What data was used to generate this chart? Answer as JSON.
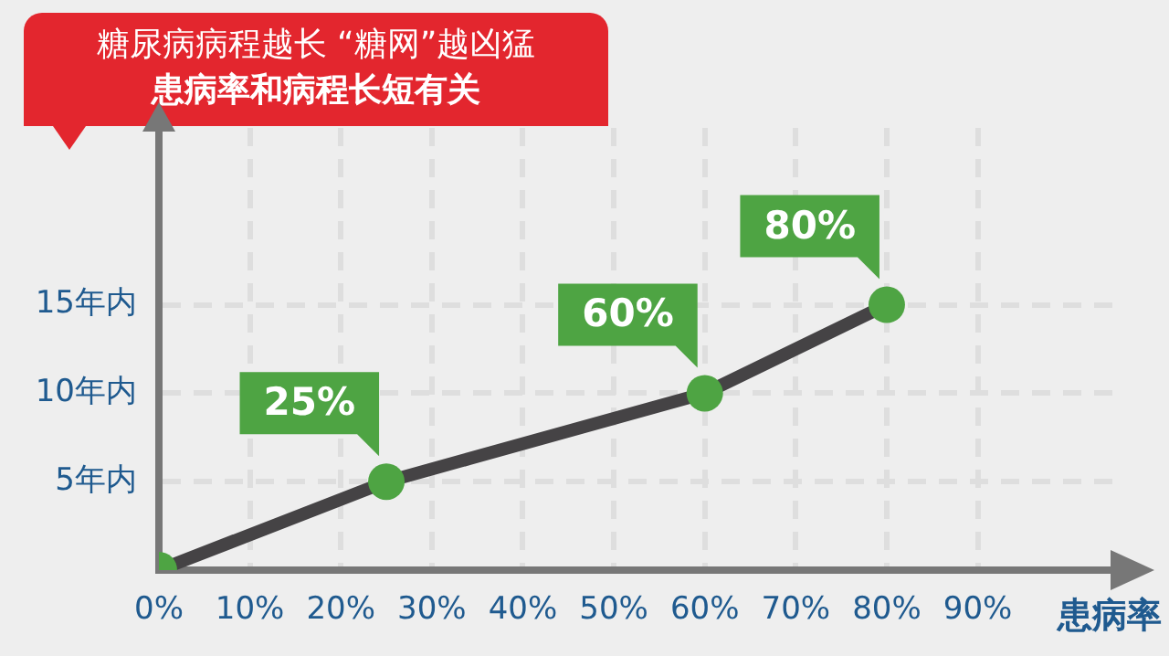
{
  "chart_data": {
    "type": "line",
    "title": "糖尿病病程越长 “糖网”越凶猛",
    "subtitle": "患病率和病程长短有关",
    "xlabel": "患病率",
    "x": [
      0,
      25,
      60,
      80
    ],
    "series": [
      {
        "color": "#454345",
        "values": [
          0,
          5,
          10,
          15
        ]
      }
    ],
    "annotations": [
      {
        "text": "25%",
        "x": 25,
        "y": 5
      },
      {
        "text": "60%",
        "x": 60,
        "y": 10
      },
      {
        "text": "80%",
        "x": 80,
        "y": 15
      }
    ],
    "xlim": [
      0,
      105
    ],
    "xticks": [
      {
        "value": 0,
        "label": "0%"
      },
      {
        "value": 10,
        "label": "10%"
      },
      {
        "value": 20,
        "label": "20%"
      },
      {
        "value": 30,
        "label": "30%"
      },
      {
        "value": 40,
        "label": "40%"
      },
      {
        "value": 50,
        "label": "50%"
      },
      {
        "value": 60,
        "label": "60%"
      },
      {
        "value": 70,
        "label": "70%"
      },
      {
        "value": 80,
        "label": "80%"
      },
      {
        "value": 90,
        "label": "90%"
      }
    ],
    "ylim": [
      0,
      25
    ],
    "yticks": [
      {
        "value": 5,
        "label": "5年内"
      },
      {
        "value": 10,
        "label": "10年内"
      },
      {
        "value": 15,
        "label": "15年内"
      }
    ],
    "grid": true,
    "marker": "circle",
    "legend": false
  }
}
